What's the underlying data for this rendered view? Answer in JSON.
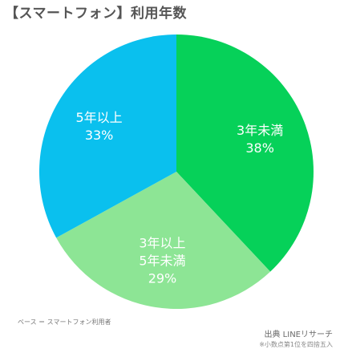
{
  "header": {
    "title": "【スマートフォン】利用年数"
  },
  "chart_data": {
    "type": "pie",
    "title": "【スマートフォン】利用年数",
    "start_angle_deg": 0,
    "direction": "clockwise",
    "slices": [
      {
        "label_lines": [
          "3年未満"
        ],
        "value": 38,
        "value_label": "38%",
        "color": "#06d159"
      },
      {
        "label_lines": [
          "3年以上",
          "5年未満"
        ],
        "value": 29,
        "value_label": "29%",
        "color": "#8de595"
      },
      {
        "label_lines": [
          "5年以上"
        ],
        "value": 33,
        "value_label": "33%",
        "color": "#0ac0ee"
      }
    ]
  },
  "footer": {
    "base_note": "ベース ＝ スマートフォン利用者",
    "source": "出典 LINEリサーチ",
    "rounding_note": "※小数点第1位を四捨五入"
  }
}
